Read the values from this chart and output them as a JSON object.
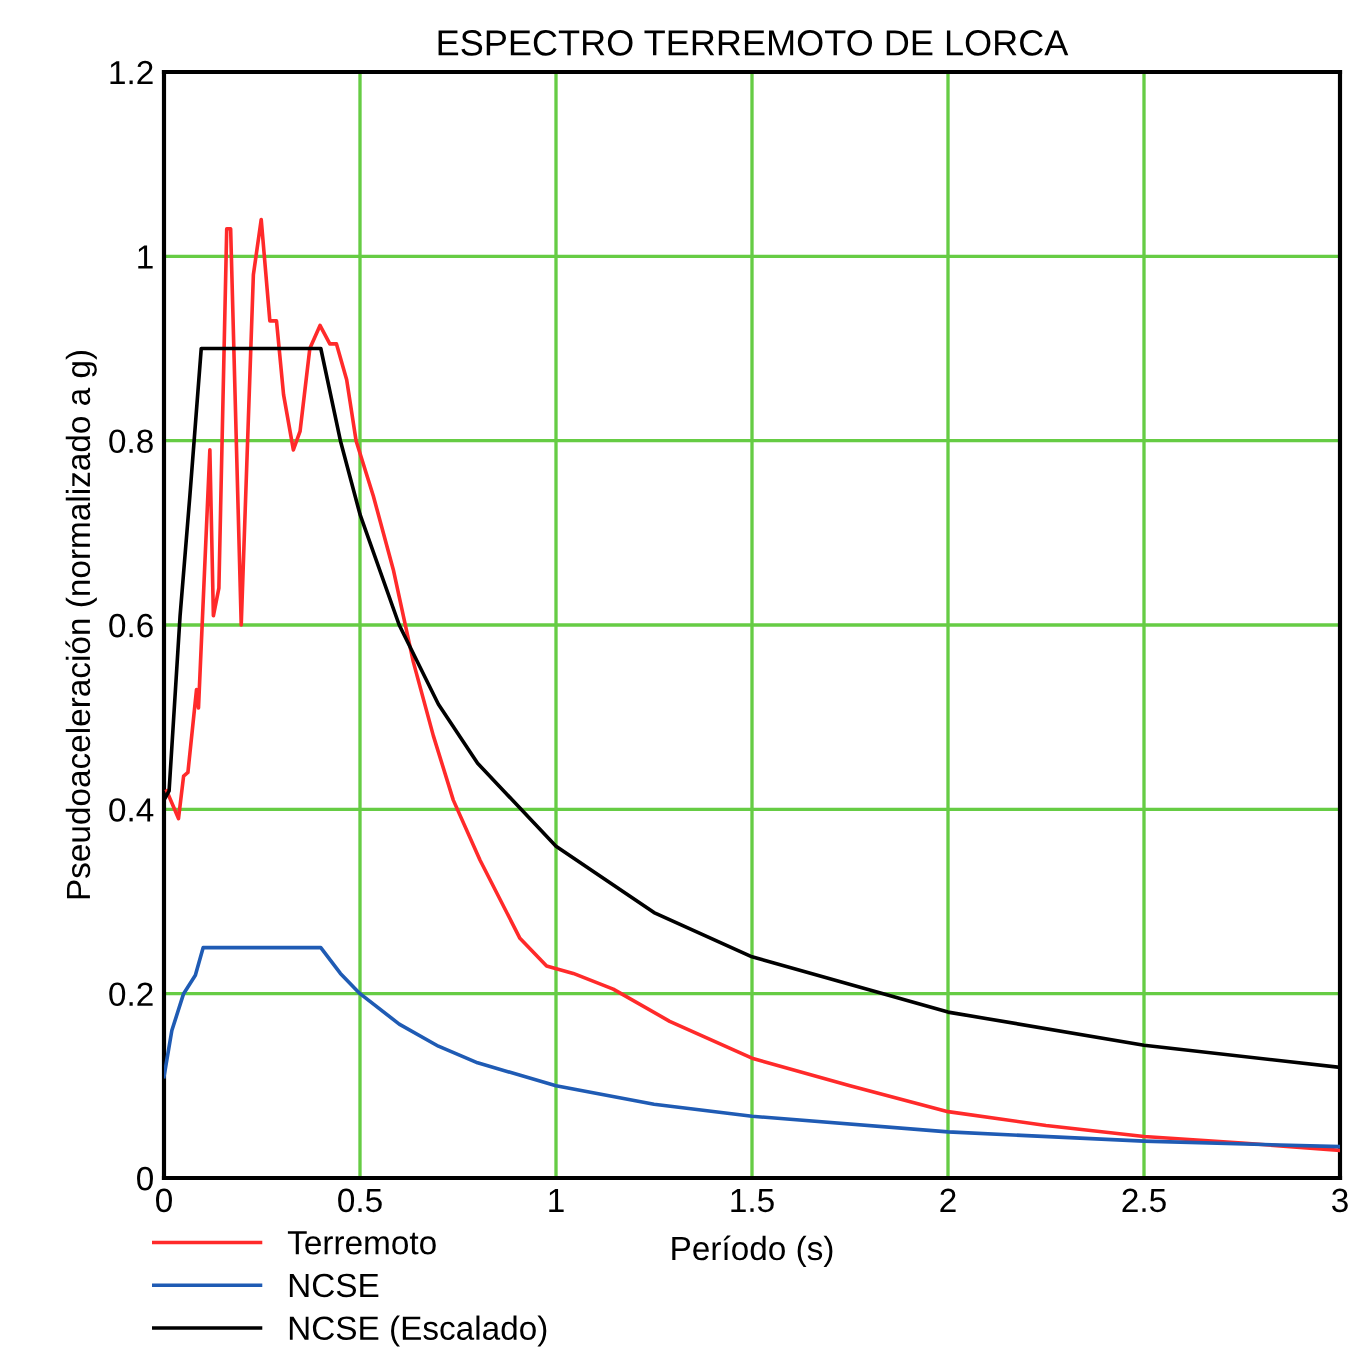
{
  "chart_data": {
    "type": "line",
    "title": "ESPECTRO TERREMOTO DE LORCA",
    "xlabel": "Período (s)",
    "ylabel": "Pseudoaceleración (normalizado a g)",
    "xlim": [
      0,
      3
    ],
    "ylim": [
      0,
      1.2
    ],
    "xticks": [
      0,
      0.5,
      1,
      1.5,
      2,
      2.5,
      3
    ],
    "yticks": [
      0,
      0.2,
      0.4,
      0.6,
      0.8,
      1,
      1.2
    ],
    "grid": true,
    "legend": "bottom left",
    "marker": "none",
    "line_style": "solid",
    "series": [
      {
        "name": "Terremoto",
        "color": "#ff2a2a",
        "x": [
          0.007,
          0.037,
          0.05,
          0.061,
          0.083,
          0.088,
          0.117,
          0.126,
          0.14,
          0.16,
          0.17,
          0.197,
          0.228,
          0.248,
          0.27,
          0.287,
          0.305,
          0.33,
          0.347,
          0.372,
          0.398,
          0.423,
          0.44,
          0.466,
          0.49,
          0.534,
          0.585,
          0.636,
          0.687,
          0.738,
          0.806,
          0.908,
          0.976,
          1.044,
          1.146,
          1.29,
          1.5,
          1.75,
          2,
          2.25,
          2.5,
          2.75,
          3
        ],
        "values": [
          0.42,
          0.39,
          0.436,
          0.44,
          0.53,
          0.51,
          0.79,
          0.61,
          0.64,
          1.03,
          1.03,
          0.6,
          0.98,
          1.04,
          0.93,
          0.93,
          0.85,
          0.79,
          0.81,
          0.9,
          0.925,
          0.905,
          0.905,
          0.866,
          0.8,
          0.74,
          0.66,
          0.56,
          0.48,
          0.41,
          0.345,
          0.26,
          0.23,
          0.222,
          0.205,
          0.17,
          0.13,
          0.1,
          0.072,
          0.057,
          0.045,
          0.038,
          0.03
        ]
      },
      {
        "name": "NCSE",
        "color": "#1f5bb4",
        "x": [
          0,
          0.02,
          0.05,
          0.08,
          0.1,
          0.4,
          0.45,
          0.5,
          0.6,
          0.7,
          0.8,
          1,
          1.25,
          1.5,
          2,
          2.5,
          3
        ],
        "values": [
          0.11,
          0.16,
          0.2,
          0.22,
          0.25,
          0.25,
          0.222,
          0.2,
          0.167,
          0.143,
          0.125,
          0.1,
          0.08,
          0.067,
          0.05,
          0.04,
          0.034
        ]
      },
      {
        "name": "NCSE (Escalado)",
        "color": "#000000",
        "x": [
          0,
          0.013,
          0.041,
          0.066,
          0.095,
          0.4,
          0.45,
          0.5,
          0.6,
          0.7,
          0.8,
          1,
          1.25,
          1.5,
          2,
          2.5,
          3
        ],
        "values": [
          0.41,
          0.42,
          0.61,
          0.74,
          0.9,
          0.9,
          0.8,
          0.72,
          0.6,
          0.514,
          0.45,
          0.36,
          0.288,
          0.24,
          0.18,
          0.144,
          0.12
        ]
      }
    ]
  }
}
